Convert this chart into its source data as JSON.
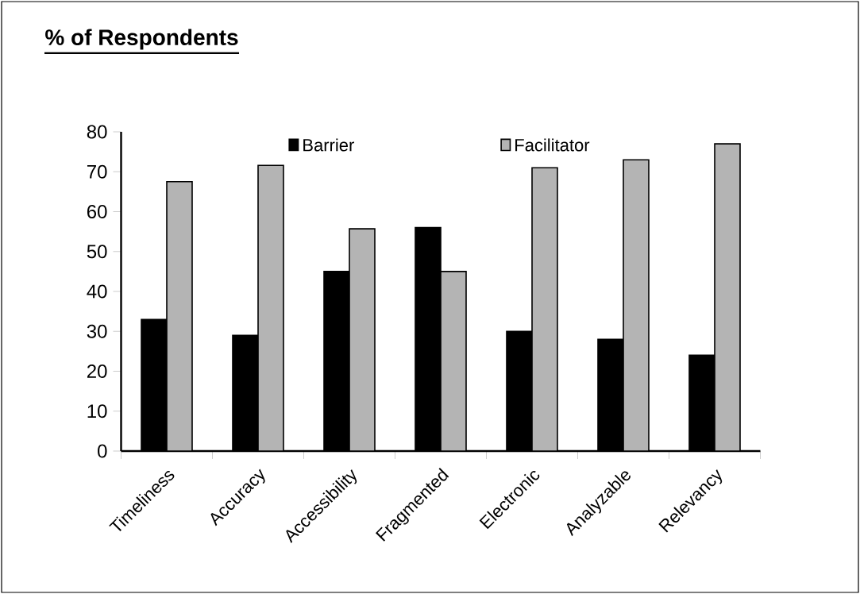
{
  "chart_data": {
    "type": "bar",
    "title": "% of Respondents",
    "categories": [
      "Timeliness",
      "Accuracy",
      "Accessibility",
      "Fragmented",
      "Electronic",
      "Analyzable",
      "Relevancy"
    ],
    "series": [
      {
        "name": "Barrier",
        "color": "#000000",
        "values": [
          33,
          29,
          45,
          56,
          30,
          28,
          24
        ]
      },
      {
        "name": "Facilitator",
        "color": "#b4b4b4",
        "values": [
          67.5,
          71.6,
          55.7,
          45,
          71,
          73,
          77
        ]
      }
    ],
    "ylim": [
      0,
      80
    ],
    "yticks": [
      0,
      10,
      20,
      30,
      40,
      50,
      60,
      70,
      80
    ],
    "legend": "top",
    "grid": false
  }
}
